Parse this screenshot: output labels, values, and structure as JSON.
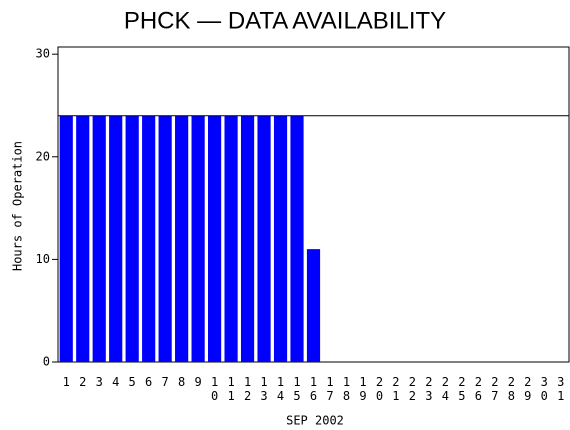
{
  "chart_data": {
    "type": "bar",
    "title": "PHCK — DATA AVAILABILITY",
    "x_label": "SEP 2002",
    "y_label": "Hours of Operation",
    "categories": [
      "1",
      "2",
      "3",
      "4",
      "5",
      "6",
      "7",
      "8",
      "9",
      "10",
      "11",
      "12",
      "13",
      "14",
      "15",
      "16",
      "17",
      "18",
      "19",
      "20",
      "21",
      "22",
      "23",
      "24",
      "25",
      "26",
      "27",
      "28",
      "29",
      "30",
      "31"
    ],
    "values": [
      24,
      24,
      24,
      24,
      24,
      24,
      24,
      24,
      24,
      24,
      24,
      24,
      24,
      24,
      24,
      11,
      0,
      0,
      0,
      0,
      0,
      0,
      0,
      0,
      0,
      0,
      0,
      0,
      0,
      0,
      0
    ],
    "color": "#0000ff",
    "ylim": [
      0,
      30.7
    ],
    "yticks": [
      0,
      10,
      20,
      30
    ],
    "reference_line": 24
  }
}
